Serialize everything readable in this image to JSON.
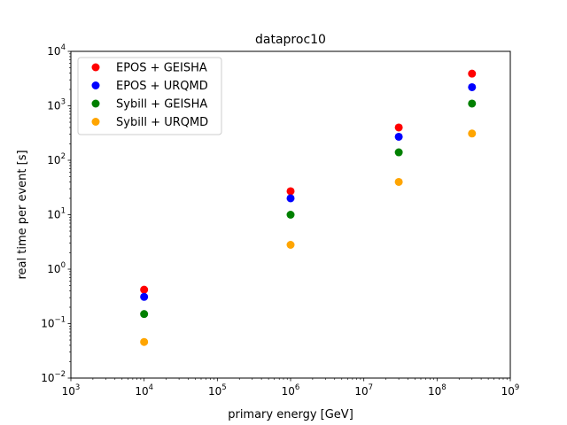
{
  "chart_data": {
    "type": "scatter",
    "title": "dataproc10",
    "xlabel": "primary energy [GeV]",
    "ylabel": "real time per event [s]",
    "xscale": "log",
    "yscale": "log",
    "xlim": [
      1000,
      1000000000
    ],
    "ylim": [
      0.01,
      10000
    ],
    "x_ticks": [
      {
        "value": 1000,
        "base": "10",
        "exp": "3"
      },
      {
        "value": 10000,
        "base": "10",
        "exp": "4"
      },
      {
        "value": 100000,
        "base": "10",
        "exp": "5"
      },
      {
        "value": 1000000,
        "base": "10",
        "exp": "6"
      },
      {
        "value": 10000000,
        "base": "10",
        "exp": "7"
      },
      {
        "value": 100000000,
        "base": "10",
        "exp": "8"
      },
      {
        "value": 1000000000,
        "base": "10",
        "exp": "9"
      }
    ],
    "y_ticks": [
      {
        "value": 0.01,
        "base": "10",
        "exp": "−2"
      },
      {
        "value": 0.1,
        "base": "10",
        "exp": "−1"
      },
      {
        "value": 1,
        "base": "10",
        "exp": "0"
      },
      {
        "value": 10,
        "base": "10",
        "exp": "1"
      },
      {
        "value": 100,
        "base": "10",
        "exp": "2"
      },
      {
        "value": 1000,
        "base": "10",
        "exp": "3"
      },
      {
        "value": 10000,
        "base": "10",
        "exp": "4"
      }
    ],
    "grid": false,
    "legend_position": "top-left",
    "x": [
      10000,
      1000000,
      30000000,
      300000000
    ],
    "series": [
      {
        "name": "EPOS + GEISHA",
        "color": "#ff0000",
        "values": [
          0.42,
          27,
          400,
          3900
        ]
      },
      {
        "name": "EPOS + URQMD",
        "color": "#0000ff",
        "values": [
          0.31,
          20,
          270,
          2200
        ]
      },
      {
        "name": "Sybill + GEISHA",
        "color": "#008000",
        "values": [
          0.15,
          10,
          140,
          1100
        ]
      },
      {
        "name": "Sybill + URQMD",
        "color": "#ffa500",
        "values": [
          0.046,
          2.8,
          40,
          310
        ]
      }
    ]
  }
}
